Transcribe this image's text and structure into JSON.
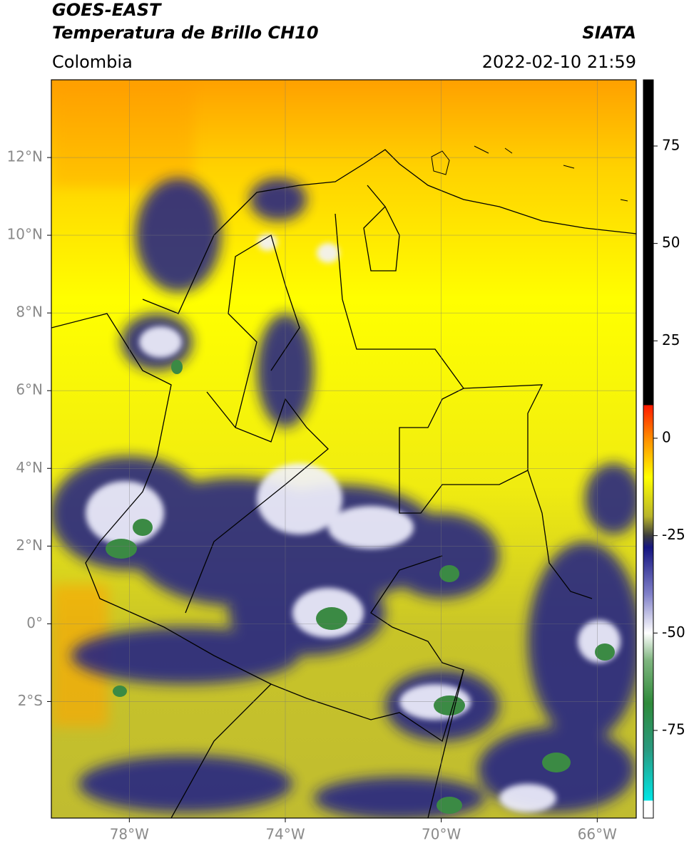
{
  "header": {
    "title": "GOES-EAST",
    "subtitle": "Temperatura de Brillo CH10",
    "region": "Colombia",
    "source": "SIATA",
    "timestamp": "2022-02-10 21:59"
  },
  "map": {
    "xlim": [
      -80,
      -65
    ],
    "ylim": [
      -5,
      14
    ],
    "grid": true,
    "xticks": [
      {
        "value": -78,
        "label": "78°W"
      },
      {
        "value": -74,
        "label": "74°W"
      },
      {
        "value": -70,
        "label": "70°W"
      },
      {
        "value": -66,
        "label": "66°W"
      }
    ],
    "yticks": [
      {
        "value": 12,
        "label": "12°N"
      },
      {
        "value": 10,
        "label": "10°N"
      },
      {
        "value": 8,
        "label": "8°N"
      },
      {
        "value": 6,
        "label": "6°N"
      },
      {
        "value": 4,
        "label": "4°N"
      },
      {
        "value": 2,
        "label": "2°N"
      },
      {
        "value": 0,
        "label": "0°"
      },
      {
        "value": -2,
        "label": "2°S"
      }
    ]
  },
  "colorbar": {
    "lim": [
      -97.5,
      92
    ],
    "ticks": [
      75,
      50,
      25,
      0,
      -25,
      -50,
      -75
    ],
    "colormap": [
      {
        "value": 92,
        "color": "#000000"
      },
      {
        "value": 8.5,
        "color": "#000000"
      },
      {
        "value": 8.5,
        "color": "#ff1a00"
      },
      {
        "value": 0,
        "color": "#ff8c00"
      },
      {
        "value": -10,
        "color": "#ffff00"
      },
      {
        "value": -20,
        "color": "#b9b52a"
      },
      {
        "value": -25,
        "color": "#3c3c3c"
      },
      {
        "value": -28,
        "color": "#151580"
      },
      {
        "value": -40,
        "color": "#8080c8"
      },
      {
        "value": -50,
        "color": "#ffffff"
      },
      {
        "value": -57,
        "color": "#7fb57f"
      },
      {
        "value": -68,
        "color": "#2f8a3a"
      },
      {
        "value": -80,
        "color": "#2a9a80"
      },
      {
        "value": -93,
        "color": "#00e6e6"
      },
      {
        "value": -93,
        "color": "#ffffff"
      },
      {
        "value": -97.5,
        "color": "#ffffff"
      }
    ]
  }
}
